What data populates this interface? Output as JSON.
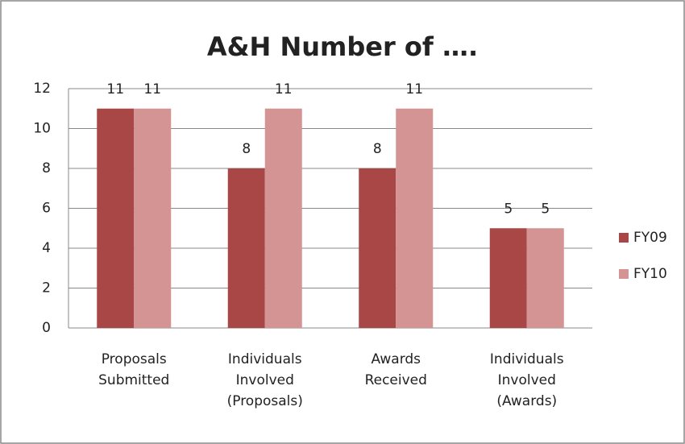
{
  "chart_data": {
    "type": "bar",
    "title": "A&H Number of ….",
    "categories": [
      "Proposals Submitted",
      "Individuals Involved (Proposals)",
      "Awards Received",
      "Individuals Involved (Awards)"
    ],
    "series": [
      {
        "name": "FY09",
        "color": "#a94646",
        "values": [
          11,
          8,
          8,
          5
        ]
      },
      {
        "name": "FY10",
        "color": "#d49494",
        "values": [
          11,
          11,
          11,
          5
        ]
      }
    ],
    "ylim": [
      0,
      12
    ],
    "yticks": [
      0,
      2,
      4,
      6,
      8,
      10,
      12
    ],
    "grid": true,
    "legend": "right"
  }
}
